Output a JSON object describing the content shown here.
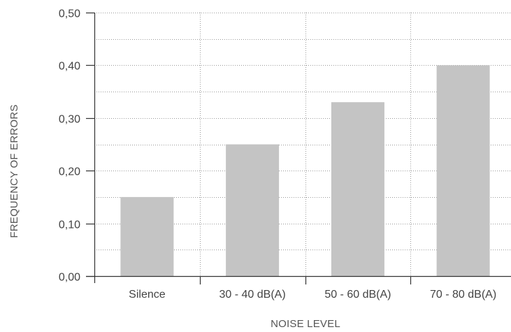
{
  "chart_data": {
    "type": "bar",
    "title": "",
    "xlabel": "NOISE LEVEL",
    "ylabel": "FREQUENCY OF ERRORS",
    "categories": [
      "Silence",
      "30 - 40 dB(A)",
      "50 - 60 dB(A)",
      "70 - 80 dB(A)"
    ],
    "values": [
      0.15,
      0.25,
      0.33,
      0.4
    ],
    "ylim": [
      0,
      0.5
    ],
    "yticks": [
      "0,00",
      "0,10",
      "0,20",
      "0,30",
      "0,40",
      "0,50"
    ],
    "grid": true,
    "legend": "none"
  },
  "colors": {
    "bar": "#c4c4c4",
    "axis": "#333333",
    "grid": "#9a9a9a",
    "text": "#444444"
  }
}
